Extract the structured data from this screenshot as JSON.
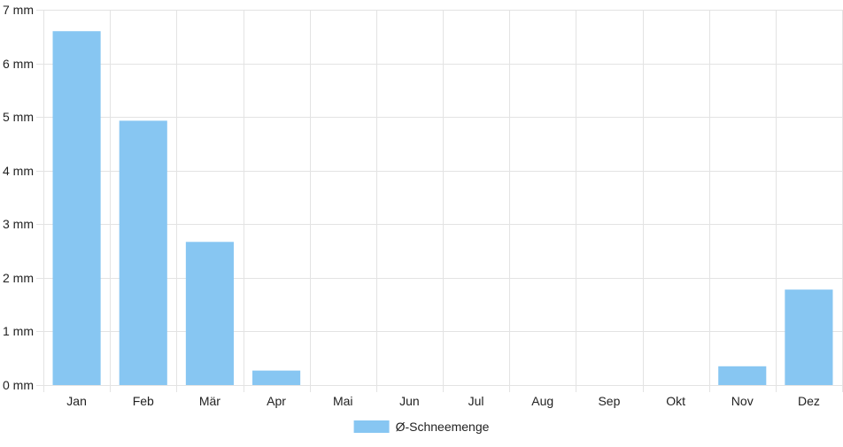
{
  "chart_data": {
    "type": "bar",
    "categories": [
      "Jan",
      "Feb",
      "Mär",
      "Apr",
      "Mai",
      "Jun",
      "Jul",
      "Aug",
      "Sep",
      "Okt",
      "Nov",
      "Dez"
    ],
    "series": [
      {
        "name": "Ø-Schneemenge",
        "values": [
          6.6,
          4.93,
          2.67,
          0.27,
          0,
          0,
          0,
          0,
          0,
          0,
          0.35,
          1.78
        ],
        "color": "#87c6f2"
      }
    ],
    "y_ticks": [
      0,
      1,
      2,
      3,
      4,
      5,
      6,
      7
    ],
    "y_unit": "mm",
    "ylim": [
      0,
      7
    ],
    "grid": true,
    "legend": "bottom-center"
  }
}
